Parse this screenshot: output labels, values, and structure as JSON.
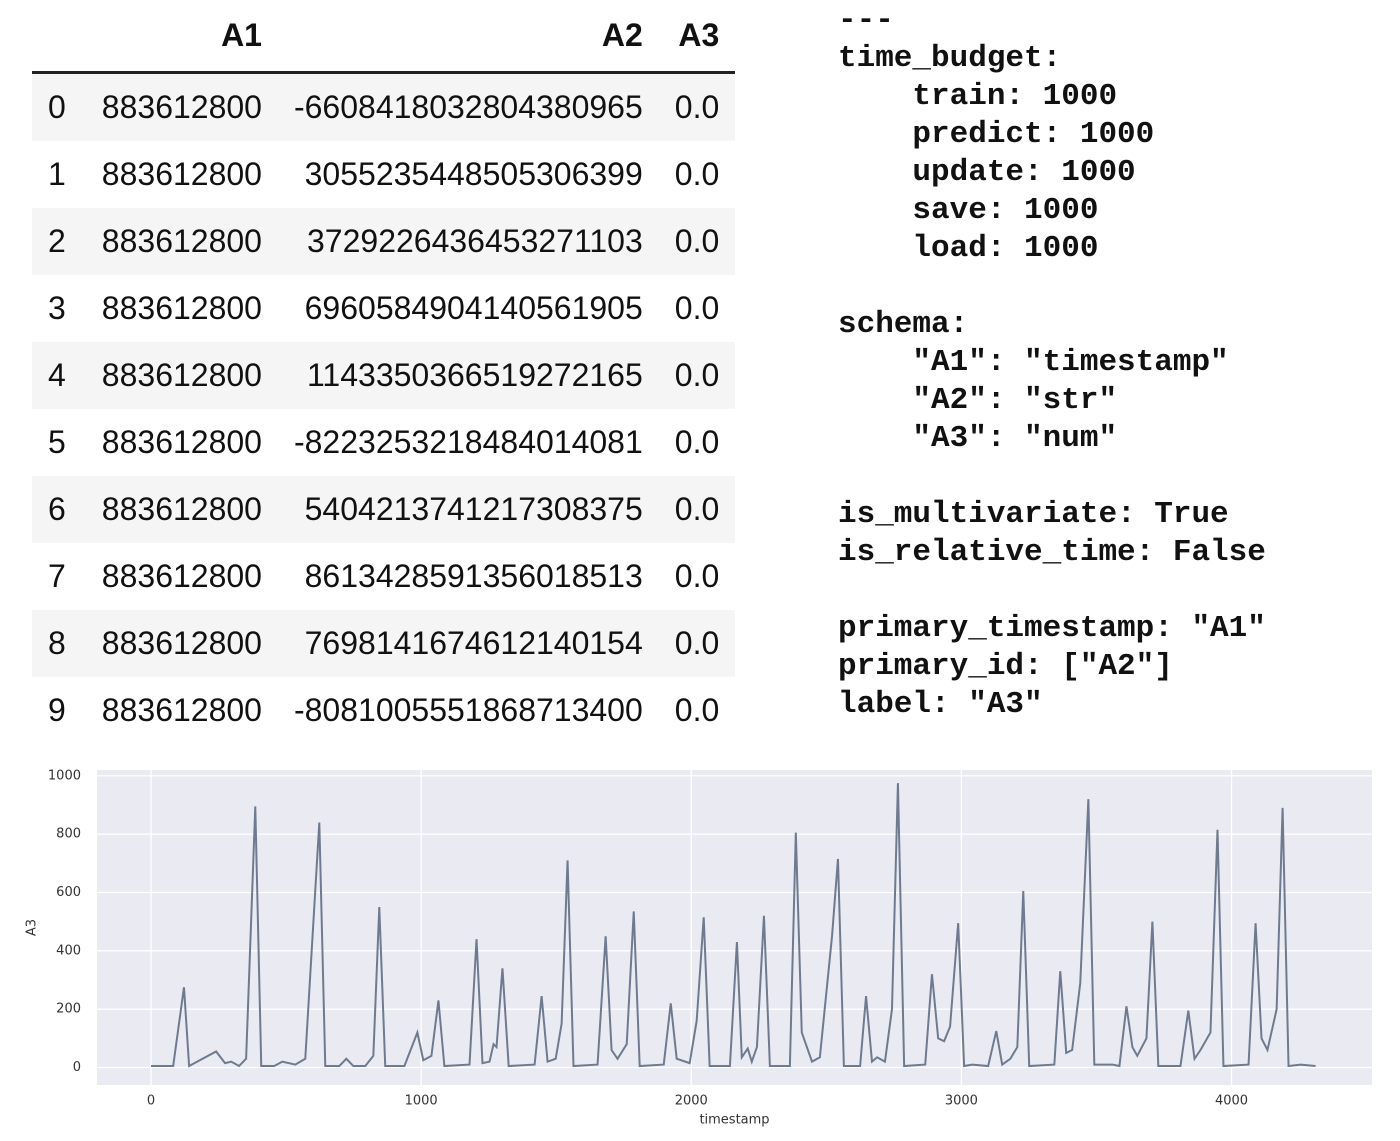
{
  "table": {
    "columns": [
      "A1",
      "A2",
      "A3"
    ],
    "rows": [
      [
        "0",
        "883612800",
        "-6608418032804380965",
        "0.0"
      ],
      [
        "1",
        "883612800",
        "3055235448505306399",
        "0.0"
      ],
      [
        "2",
        "883612800",
        "3729226436453271103",
        "0.0"
      ],
      [
        "3",
        "883612800",
        "6960584904140561905",
        "0.0"
      ],
      [
        "4",
        "883612800",
        "1143350366519272165",
        "0.0"
      ],
      [
        "5",
        "883612800",
        "-8223253218484014081",
        "0.0"
      ],
      [
        "6",
        "883612800",
        "5404213741217308375",
        "0.0"
      ],
      [
        "7",
        "883612800",
        "8613428591356018513",
        "0.0"
      ],
      [
        "8",
        "883612800",
        "7698141674612140154",
        "0.0"
      ],
      [
        "9",
        "883612800",
        "-8081005551868713400",
        "0.0"
      ]
    ]
  },
  "config": {
    "blocks": [
      [
        "---",
        "time_budget:",
        "    train: 1000",
        "    predict: 1000",
        "    update: 1000",
        "    save: 1000",
        "    load: 1000"
      ],
      [
        "schema:",
        "    \"A1\": \"timestamp\"",
        "    \"A2\": \"str\"",
        "    \"A3\": \"num\""
      ],
      [
        "is_multivariate: True",
        "is_relative_time: False"
      ],
      [
        "primary_timestamp: \"A1\"",
        "primary_id: [\"A2\"]",
        "label: \"A3\""
      ]
    ]
  },
  "chart_data": {
    "type": "line",
    "xlabel": "timestamp",
    "ylabel": "A3",
    "x": [
      0,
      82,
      122,
      141,
      241,
      274,
      297,
      326,
      352,
      386,
      408,
      456,
      486,
      534,
      571,
      623,
      645,
      697,
      723,
      749,
      793,
      823,
      845,
      867,
      938,
      986,
      1008,
      1038,
      1064,
      1086,
      1179,
      1205,
      1227,
      1253,
      1268,
      1279,
      1301,
      1324,
      1420,
      1446,
      1468,
      1498,
      1520,
      1542,
      1564,
      1653,
      1683,
      1705,
      1727,
      1761,
      1787,
      1809,
      1898,
      1924,
      1946,
      1994,
      2020,
      2046,
      2068,
      2143,
      2169,
      2187,
      2209,
      2224,
      2243,
      2269,
      2291,
      2365,
      2387,
      2409,
      2447,
      2476,
      2521,
      2543,
      2565,
      2625,
      2647,
      2669,
      2688,
      2717,
      2743,
      2765,
      2788,
      2866,
      2891,
      2914,
      2936,
      2958,
      2988,
      3010,
      3040,
      3099,
      3129,
      3151,
      3181,
      3207,
      3229,
      3251,
      3344,
      3366,
      3388,
      3410,
      3440,
      3470,
      3492,
      3559,
      3585,
      3611,
      3633,
      3651,
      3685,
      3707,
      3729,
      3811,
      3840,
      3863,
      3885,
      3922,
      3948,
      3970,
      4063,
      4089,
      4111,
      4133,
      4167,
      4189,
      4211,
      4256,
      4311
    ],
    "series": [
      {
        "name": "A3",
        "color": "#6e7b8f",
        "values": [
          5,
          5,
          275,
          5,
          55,
          15,
          20,
          5,
          30,
          895,
          5,
          5,
          20,
          10,
          30,
          840,
          5,
          5,
          30,
          5,
          5,
          40,
          550,
          5,
          5,
          120,
          25,
          40,
          230,
          5,
          10,
          440,
          15,
          20,
          80,
          70,
          340,
          5,
          10,
          245,
          20,
          30,
          150,
          710,
          5,
          10,
          450,
          60,
          30,
          80,
          535,
          5,
          10,
          220,
          30,
          15,
          160,
          515,
          5,
          5,
          430,
          35,
          65,
          20,
          70,
          520,
          5,
          5,
          805,
          120,
          20,
          35,
          450,
          715,
          5,
          5,
          245,
          20,
          35,
          20,
          200,
          975,
          5,
          10,
          320,
          100,
          90,
          140,
          495,
          5,
          10,
          5,
          125,
          10,
          30,
          70,
          605,
          5,
          10,
          330,
          50,
          60,
          290,
          920,
          10,
          10,
          5,
          210,
          70,
          40,
          100,
          500,
          5,
          5,
          195,
          30,
          60,
          120,
          815,
          5,
          10,
          495,
          100,
          60,
          200,
          890,
          5,
          10,
          5
        ]
      }
    ],
    "xlim": [
      -200,
      4520
    ],
    "ylim": [
      -60,
      1020
    ],
    "xticks": [
      0,
      1000,
      2000,
      3000,
      4000
    ],
    "yticks": [
      0,
      200,
      400,
      600,
      800,
      1000
    ],
    "grid": true,
    "background": "#eaeaf2"
  }
}
